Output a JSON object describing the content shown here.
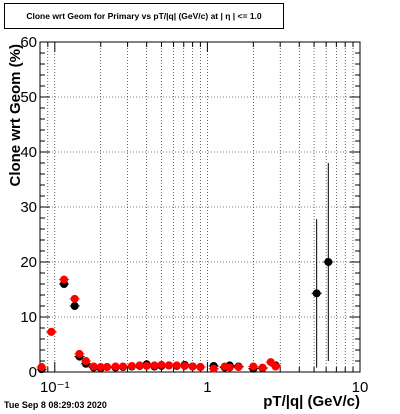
{
  "chart_data": {
    "type": "scatter",
    "title": "Clone wrt Geom for Primary vs pT/|q| (GeV/c) at | η | <= 1.0",
    "xlabel": "pT/|q| (GeV/c)",
    "ylabel": "Clone wrt Geom (%)",
    "xscale": "log",
    "xlim": [
      0.08,
      10
    ],
    "ylim": [
      0,
      60
    ],
    "grid": true,
    "x_tick_labels": [
      "10⁻¹",
      "1",
      "10"
    ],
    "y_tick_labels": [
      "0",
      "10",
      "20",
      "30",
      "40",
      "50",
      "60"
    ],
    "series": [
      {
        "color": "#000000",
        "points": [
          {
            "x": 0.082,
            "y": 0.5
          },
          {
            "x": 0.095,
            "y": 7.3
          },
          {
            "x": 0.115,
            "y": 16.0
          },
          {
            "x": 0.135,
            "y": 12.0
          },
          {
            "x": 0.145,
            "y": 2.8
          },
          {
            "x": 0.16,
            "y": 1.5
          },
          {
            "x": 0.18,
            "y": 0.8
          },
          {
            "x": 0.2,
            "y": 0.7
          },
          {
            "x": 0.22,
            "y": 0.9
          },
          {
            "x": 0.25,
            "y": 0.8
          },
          {
            "x": 0.28,
            "y": 0.9
          },
          {
            "x": 0.32,
            "y": 1.0
          },
          {
            "x": 0.36,
            "y": 1.1
          },
          {
            "x": 0.4,
            "y": 1.4
          },
          {
            "x": 0.45,
            "y": 1.0
          },
          {
            "x": 0.5,
            "y": 1.1
          },
          {
            "x": 0.56,
            "y": 1.2
          },
          {
            "x": 0.63,
            "y": 1.1
          },
          {
            "x": 0.71,
            "y": 1.3
          },
          {
            "x": 0.8,
            "y": 1.0
          },
          {
            "x": 0.9,
            "y": 0.9
          },
          {
            "x": 1.1,
            "y": 1.1
          },
          {
            "x": 1.3,
            "y": 0.8
          },
          {
            "x": 1.4,
            "y": 1.2
          },
          {
            "x": 1.6,
            "y": 1.0
          },
          {
            "x": 2.0,
            "y": 0.6
          },
          {
            "x": 2.3,
            "y": 0.7
          },
          {
            "x": 2.8,
            "y": 1.2
          },
          {
            "x": 5.2,
            "y": 14.3,
            "err": 13.5
          },
          {
            "x": 6.2,
            "y": 20.0,
            "err": 18.0
          }
        ]
      },
      {
        "color": "#ff0000",
        "points": [
          {
            "x": 0.082,
            "y": 0.9
          },
          {
            "x": 0.095,
            "y": 7.3
          },
          {
            "x": 0.115,
            "y": 16.8
          },
          {
            "x": 0.135,
            "y": 13.3
          },
          {
            "x": 0.145,
            "y": 3.3
          },
          {
            "x": 0.16,
            "y": 2.0
          },
          {
            "x": 0.18,
            "y": 1.0
          },
          {
            "x": 0.2,
            "y": 0.9
          },
          {
            "x": 0.22,
            "y": 0.9
          },
          {
            "x": 0.25,
            "y": 1.0
          },
          {
            "x": 0.28,
            "y": 1.0
          },
          {
            "x": 0.32,
            "y": 1.1
          },
          {
            "x": 0.36,
            "y": 1.2
          },
          {
            "x": 0.4,
            "y": 1.1
          },
          {
            "x": 0.45,
            "y": 1.2
          },
          {
            "x": 0.5,
            "y": 1.3
          },
          {
            "x": 0.56,
            "y": 1.2
          },
          {
            "x": 0.63,
            "y": 1.2
          },
          {
            "x": 0.71,
            "y": 1.1
          },
          {
            "x": 0.8,
            "y": 1.0
          },
          {
            "x": 0.9,
            "y": 0.9
          },
          {
            "x": 1.1,
            "y": 0.6
          },
          {
            "x": 1.3,
            "y": 1.0
          },
          {
            "x": 1.4,
            "y": 0.8
          },
          {
            "x": 1.6,
            "y": 0.9
          },
          {
            "x": 2.0,
            "y": 1.0
          },
          {
            "x": 2.3,
            "y": 0.8
          },
          {
            "x": 2.6,
            "y": 1.8
          },
          {
            "x": 2.8,
            "y": 1.0
          }
        ]
      }
    ]
  },
  "footer": {
    "timestamp": "Tue Sep  8 08:29:03 2020"
  }
}
